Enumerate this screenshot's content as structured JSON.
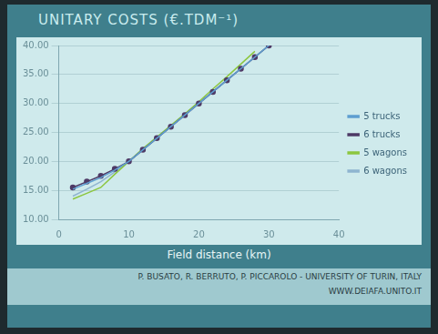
{
  "chart_data": {
    "type": "line",
    "title": "UNITARY COSTS (€.TDM⁻¹)",
    "x_label": "Field distance (km)",
    "footer": [
      "P. BUSATO, R. BERRUTO, P. PICCAROLO - UNIVERSITY OF TURIN, ITALY",
      "WWW.DEIAFA.UNITO.IT"
    ],
    "x": [
      2,
      4,
      6,
      8,
      10,
      12,
      14,
      16,
      18,
      20,
      22,
      24,
      26,
      28,
      30
    ],
    "series": [
      {
        "name": "5 trucks",
        "color": "#5f9fd0",
        "marker": "none",
        "values": [
          15.2,
          16.2,
          17.2,
          18.5,
          20.0,
          22.0,
          24.0,
          26.0,
          28.0,
          30.0,
          32.0,
          34.0,
          36.0,
          38.0,
          40.0
        ]
      },
      {
        "name": "6 trucks",
        "color": "#4e3a66",
        "marker": "circle",
        "values": [
          15.5,
          16.5,
          17.5,
          18.7,
          20.0,
          22.0,
          24.0,
          26.0,
          28.0,
          30.0,
          32.0,
          34.0,
          36.0,
          38.0,
          40.0
        ]
      },
      {
        "name": "5 wagons",
        "color": "#8cc63f",
        "marker": "none",
        "values": [
          13.5,
          14.5,
          15.5,
          17.8,
          20.0,
          22.2,
          24.2,
          26.2,
          28.2,
          30.3,
          32.5,
          34.6,
          36.8,
          39.0,
          null
        ]
      },
      {
        "name": "6 wagons",
        "color": "#8fb4cf",
        "marker": "none",
        "values": [
          14.0,
          15.2,
          16.5,
          18.2,
          20.0,
          22.0,
          24.0,
          26.0,
          28.0,
          30.0,
          32.0,
          34.0,
          36.0,
          38.0,
          40.0
        ]
      }
    ],
    "xlim": [
      0,
      40
    ],
    "xticks": [
      0,
      10,
      20,
      30,
      40
    ],
    "ylim": [
      10,
      40
    ],
    "yticks": [
      {
        "value": 10,
        "label": "10.00"
      },
      {
        "value": 15,
        "label": "15.00"
      },
      {
        "value": 20,
        "label": "20.00"
      },
      {
        "value": 25,
        "label": "25.00"
      },
      {
        "value": 30,
        "label": "30.00"
      },
      {
        "value": 35,
        "label": "35.00"
      },
      {
        "value": 40,
        "label": "40.00"
      }
    ],
    "grid": true,
    "legend": "right"
  }
}
